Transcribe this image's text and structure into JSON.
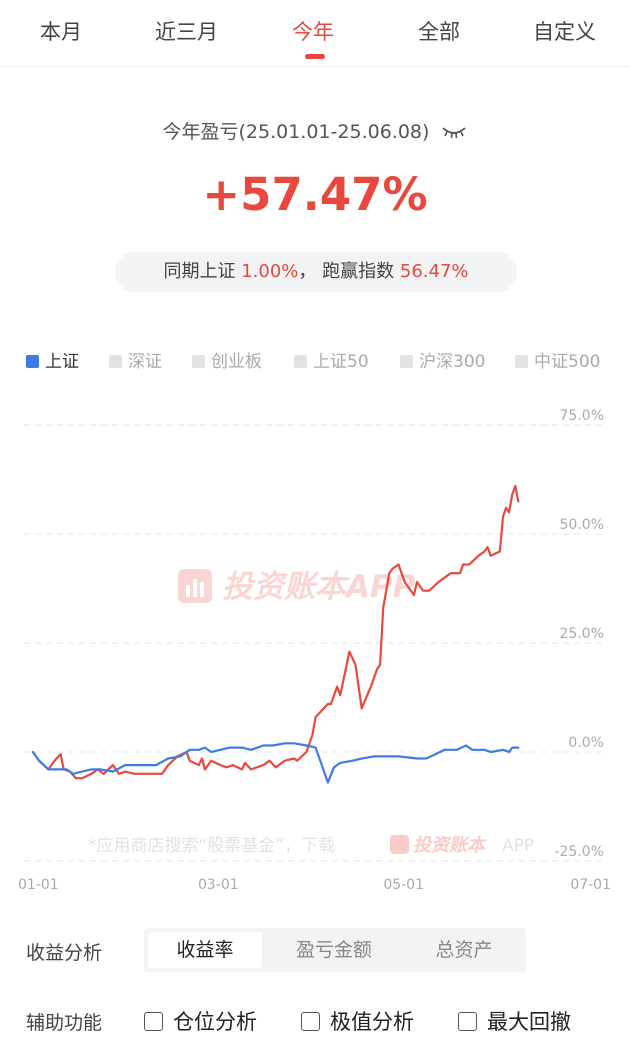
{
  "tabs": [
    "本月",
    "近三月",
    "今年",
    "全部",
    "自定义"
  ],
  "active_tab": "今年",
  "summary": {
    "period_label": "今年盈亏(25.01.01-25.06.08)",
    "return_pct": "+57.47%",
    "compare_prefix": "同期上证",
    "compare_value": "1.00%",
    "compare_sep": "，",
    "beat_label": "跑赢指数",
    "beat_value": "56.47%"
  },
  "legend": [
    {
      "label": "上证",
      "active": true
    },
    {
      "label": "深证",
      "active": false
    },
    {
      "label": "创业板",
      "active": false
    },
    {
      "label": "上证50",
      "active": false
    },
    {
      "label": "沪深300",
      "active": false
    },
    {
      "label": "中证500",
      "active": false
    }
  ],
  "watermark": {
    "brand": "投资账本APP",
    "bottom_text": "*应用商店搜索“股票基金”，下载",
    "bottom_brand": "投资账本",
    "bottom_app": "APP"
  },
  "colors": {
    "accent": "#e8483d",
    "benchmark": "#3f7be0",
    "grid": "#e6e6e6"
  },
  "analysis": {
    "label": "收益分析",
    "options": [
      "收益率",
      "盈亏金额",
      "总资产"
    ],
    "selected": "收益率"
  },
  "aux": {
    "label": "辅助功能",
    "checks": [
      "仓位分析",
      "极值分析",
      "最大回撤"
    ]
  },
  "chart_data": {
    "type": "line",
    "x_ticks": [
      "01-01",
      "03-01",
      "05-01",
      "07-01"
    ],
    "x_range": [
      "2025-01-01",
      "2025-07-01"
    ],
    "y_ticks": [
      "75.0%",
      "50.0%",
      "25.0%",
      "0.0%",
      "-25.0%"
    ],
    "ylim": [
      -25,
      75
    ],
    "grid": true,
    "series": [
      {
        "name": "",
        "color": "#e8483d",
        "points": [
          [
            "2025-01-01",
            0.0
          ],
          [
            "2025-01-03",
            -2.0
          ],
          [
            "2025-01-06",
            -4.0
          ],
          [
            "2025-01-08",
            -2.0
          ],
          [
            "2025-01-10",
            -0.5
          ],
          [
            "2025-01-11",
            -4.0
          ],
          [
            "2025-01-13",
            -4.5
          ],
          [
            "2025-01-15",
            -6.0
          ],
          [
            "2025-01-17",
            -6.0
          ],
          [
            "2025-01-20",
            -5.0
          ],
          [
            "2025-01-22",
            -4.0
          ],
          [
            "2025-01-24",
            -5.0
          ],
          [
            "2025-01-27",
            -3.0
          ],
          [
            "2025-01-29",
            -5.0
          ],
          [
            "2025-01-31",
            -4.5
          ],
          [
            "2025-02-03",
            -5.0
          ],
          [
            "2025-02-06",
            -5.0
          ],
          [
            "2025-02-10",
            -5.0
          ],
          [
            "2025-02-12",
            -5.0
          ],
          [
            "2025-02-14",
            -3.0
          ],
          [
            "2025-02-17",
            -1.0
          ],
          [
            "2025-02-20",
            0.0
          ],
          [
            "2025-02-21",
            -2.0
          ],
          [
            "2025-02-24",
            -3.0
          ],
          [
            "2025-02-25",
            -1.5
          ],
          [
            "2025-02-26",
            -4.0
          ],
          [
            "2025-02-28",
            -2.0
          ],
          [
            "2025-03-03",
            -3.0
          ],
          [
            "2025-03-05",
            -3.5
          ],
          [
            "2025-03-07",
            -3.0
          ],
          [
            "2025-03-10",
            -4.0
          ],
          [
            "2025-03-11",
            -2.5
          ],
          [
            "2025-03-13",
            -4.0
          ],
          [
            "2025-03-17",
            -3.0
          ],
          [
            "2025-03-19",
            -2.0
          ],
          [
            "2025-03-21",
            -3.5
          ],
          [
            "2025-03-24",
            -2.0
          ],
          [
            "2025-03-27",
            -1.5
          ],
          [
            "2025-03-28",
            -2.0
          ],
          [
            "2025-03-31",
            0.0
          ],
          [
            "2025-04-02",
            4.0
          ],
          [
            "2025-04-03",
            8.0
          ],
          [
            "2025-04-07",
            11.0
          ],
          [
            "2025-04-08",
            11.0
          ],
          [
            "2025-04-10",
            15.0
          ],
          [
            "2025-04-11",
            13.0
          ],
          [
            "2025-04-14",
            23.0
          ],
          [
            "2025-04-16",
            20.0
          ],
          [
            "2025-04-18",
            10.0
          ],
          [
            "2025-04-21",
            15.0
          ],
          [
            "2025-04-23",
            19.0
          ],
          [
            "2025-04-24",
            20.0
          ],
          [
            "2025-04-25",
            33.0
          ],
          [
            "2025-04-27",
            41.0
          ],
          [
            "2025-04-28",
            42.0
          ],
          [
            "2025-04-30",
            43.0
          ],
          [
            "2025-05-02",
            39.0
          ],
          [
            "2025-05-05",
            36.0
          ],
          [
            "2025-05-06",
            39.0
          ],
          [
            "2025-05-08",
            37.0
          ],
          [
            "2025-05-10",
            37.0
          ],
          [
            "2025-05-13",
            39.0
          ],
          [
            "2025-05-15",
            40.0
          ],
          [
            "2025-05-17",
            41.0
          ],
          [
            "2025-05-20",
            41.0
          ],
          [
            "2025-05-21",
            43.0
          ],
          [
            "2025-05-23",
            43.0
          ],
          [
            "2025-05-26",
            45.0
          ],
          [
            "2025-05-28",
            46.0
          ],
          [
            "2025-05-29",
            47.0
          ],
          [
            "2025-05-30",
            45.0
          ],
          [
            "2025-06-02",
            46.0
          ],
          [
            "2025-06-03",
            54.0
          ],
          [
            "2025-06-04",
            56.0
          ],
          [
            "2025-06-05",
            55.0
          ],
          [
            "2025-06-06",
            59.0
          ],
          [
            "2025-06-07",
            61.0
          ],
          [
            "2025-06-08",
            57.47
          ]
        ]
      },
      {
        "name": "上证",
        "color": "#3f7be0",
        "points": [
          [
            "2025-01-01",
            0.0
          ],
          [
            "2025-01-03",
            -2.0
          ],
          [
            "2025-01-06",
            -4.0
          ],
          [
            "2025-01-09",
            -4.0
          ],
          [
            "2025-01-12",
            -4.0
          ],
          [
            "2025-01-14",
            -5.0
          ],
          [
            "2025-01-17",
            -4.5
          ],
          [
            "2025-01-20",
            -4.0
          ],
          [
            "2025-01-23",
            -4.0
          ],
          [
            "2025-01-27",
            -4.5
          ],
          [
            "2025-01-31",
            -3.0
          ],
          [
            "2025-02-04",
            -3.0
          ],
          [
            "2025-02-10",
            -3.0
          ],
          [
            "2025-02-14",
            -1.5
          ],
          [
            "2025-02-18",
            -1.0
          ],
          [
            "2025-02-21",
            0.5
          ],
          [
            "2025-02-24",
            0.5
          ],
          [
            "2025-02-26",
            1.0
          ],
          [
            "2025-02-28",
            0.0
          ],
          [
            "2025-03-03",
            0.5
          ],
          [
            "2025-03-06",
            1.0
          ],
          [
            "2025-03-10",
            1.0
          ],
          [
            "2025-03-13",
            0.5
          ],
          [
            "2025-03-17",
            1.5
          ],
          [
            "2025-03-20",
            1.5
          ],
          [
            "2025-03-24",
            2.0
          ],
          [
            "2025-03-27",
            2.0
          ],
          [
            "2025-03-31",
            1.5
          ],
          [
            "2025-04-03",
            1.0
          ],
          [
            "2025-04-07",
            -7.0
          ],
          [
            "2025-04-09",
            -3.5
          ],
          [
            "2025-04-11",
            -2.5
          ],
          [
            "2025-04-15",
            -2.0
          ],
          [
            "2025-04-18",
            -1.5
          ],
          [
            "2025-04-22",
            -1.0
          ],
          [
            "2025-04-25",
            -1.0
          ],
          [
            "2025-04-30",
            -1.0
          ],
          [
            "2025-05-06",
            -1.5
          ],
          [
            "2025-05-09",
            -1.5
          ],
          [
            "2025-05-12",
            -0.5
          ],
          [
            "2025-05-15",
            0.5
          ],
          [
            "2025-05-19",
            0.5
          ],
          [
            "2025-05-22",
            1.5
          ],
          [
            "2025-05-24",
            0.5
          ],
          [
            "2025-05-28",
            0.5
          ],
          [
            "2025-05-30",
            0.0
          ],
          [
            "2025-06-03",
            0.5
          ],
          [
            "2025-06-05",
            0.0
          ],
          [
            "2025-06-06",
            1.0
          ],
          [
            "2025-06-08",
            1.0
          ]
        ]
      }
    ]
  }
}
